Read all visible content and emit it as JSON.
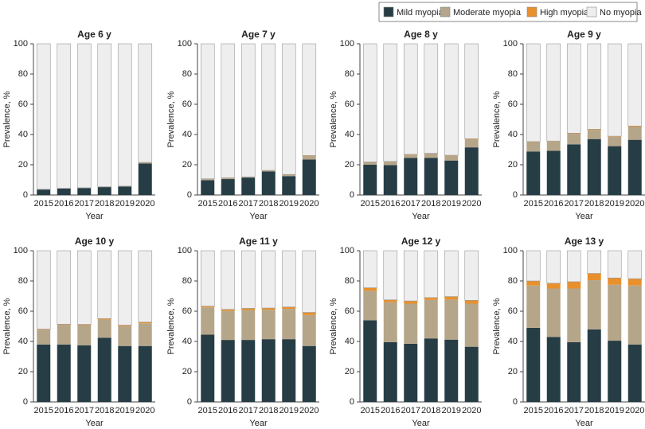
{
  "chart_data": [
    {
      "type": "bar",
      "stacked": true,
      "title": "Age 6 y",
      "x_label": "Year",
      "y_label": "Prevalence, %",
      "categories": [
        "2015",
        "2016",
        "2017",
        "2018",
        "2019",
        "2020"
      ],
      "ylim": [
        0,
        100
      ],
      "yticks": [
        0,
        20,
        40,
        60,
        80,
        100
      ],
      "series": [
        {
          "name": "Mild myopia",
          "color": "#263d45",
          "values": [
            3.6,
            4.2,
            4.6,
            5.2,
            5.6,
            20.8
          ]
        },
        {
          "name": "Moderate myopia",
          "color": "#b5a68a",
          "values": [
            0.2,
            0.2,
            0.2,
            0.3,
            0.3,
            0.7
          ]
        },
        {
          "name": "High myopia",
          "color": "#e8902c",
          "values": [
            0,
            0,
            0,
            0,
            0,
            0.1
          ]
        },
        {
          "name": "No myopia",
          "color": "#eeeeee",
          "values": [
            96.2,
            95.6,
            95.2,
            94.5,
            94.1,
            78.4
          ]
        }
      ]
    },
    {
      "type": "bar",
      "stacked": true,
      "title": "Age 7 y",
      "x_label": "Year",
      "y_label": "Prevalence, %",
      "categories": [
        "2015",
        "2016",
        "2017",
        "2018",
        "2019",
        "2020"
      ],
      "ylim": [
        0,
        100
      ],
      "yticks": [
        0,
        20,
        40,
        60,
        80,
        100
      ],
      "series": [
        {
          "name": "Mild myopia",
          "color": "#263d45",
          "values": [
            9.8,
            10.5,
            11.5,
            15.6,
            12.5,
            23.5
          ]
        },
        {
          "name": "Moderate myopia",
          "color": "#b5a68a",
          "values": [
            0.8,
            0.8,
            0.5,
            0.6,
            1,
            2.3
          ]
        },
        {
          "name": "High myopia",
          "color": "#e8902c",
          "values": [
            0.1,
            0.1,
            0,
            0.1,
            0.1,
            0.3
          ]
        },
        {
          "name": "No myopia",
          "color": "#eeeeee",
          "values": [
            89.3,
            88.6,
            88,
            83.7,
            86.4,
            73.9
          ]
        }
      ]
    },
    {
      "type": "bar",
      "stacked": true,
      "title": "Age 8 y",
      "x_label": "Year",
      "y_label": "Prevalence, %",
      "categories": [
        "2015",
        "2016",
        "2017",
        "2018",
        "2019",
        "2020"
      ],
      "ylim": [
        0,
        100
      ],
      "yticks": [
        0,
        20,
        40,
        60,
        80,
        100
      ],
      "series": [
        {
          "name": "Mild myopia",
          "color": "#263d45",
          "values": [
            20,
            19.8,
            24.5,
            24.6,
            22.8,
            31.5
          ]
        },
        {
          "name": "Moderate myopia",
          "color": "#b5a68a",
          "values": [
            1.8,
            2.3,
            2.2,
            2.8,
            3.2,
            5.3
          ]
        },
        {
          "name": "High myopia",
          "color": "#e8902c",
          "values": [
            0.1,
            0.1,
            0.2,
            0.2,
            0.3,
            0.4
          ]
        },
        {
          "name": "No myopia",
          "color": "#eeeeee",
          "values": [
            78.1,
            77.8,
            73.1,
            72.4,
            73.7,
            62.8
          ]
        }
      ]
    },
    {
      "type": "bar",
      "stacked": true,
      "title": "Age 9 y",
      "x_label": "Year",
      "y_label": "Prevalence, %",
      "categories": [
        "2015",
        "2016",
        "2017",
        "2018",
        "2019",
        "2020"
      ],
      "ylim": [
        0,
        100
      ],
      "yticks": [
        0,
        20,
        40,
        60,
        80,
        100
      ],
      "series": [
        {
          "name": "Mild myopia",
          "color": "#263d45",
          "values": [
            28.8,
            29.2,
            33.5,
            37,
            32.3,
            36.5
          ]
        },
        {
          "name": "Moderate myopia",
          "color": "#b5a68a",
          "values": [
            6.2,
            6.2,
            7,
            6,
            6.2,
            8.5
          ]
        },
        {
          "name": "High myopia",
          "color": "#e8902c",
          "values": [
            0.3,
            0.3,
            0.4,
            0.5,
            0.4,
            0.6
          ]
        },
        {
          "name": "No myopia",
          "color": "#eeeeee",
          "values": [
            64.7,
            64.3,
            59.1,
            56.5,
            61.1,
            54.4
          ]
        }
      ]
    },
    {
      "type": "bar",
      "stacked": true,
      "title": "Age 10 y",
      "x_label": "Year",
      "y_label": "Prevalence, %",
      "categories": [
        "2015",
        "2016",
        "2017",
        "2018",
        "2019",
        "2020"
      ],
      "ylim": [
        0,
        100
      ],
      "yticks": [
        0,
        20,
        40,
        60,
        80,
        100
      ],
      "series": [
        {
          "name": "Mild myopia",
          "color": "#263d45",
          "values": [
            38,
            38,
            37.5,
            42.5,
            37,
            37
          ]
        },
        {
          "name": "Moderate myopia",
          "color": "#b5a68a",
          "values": [
            9.8,
            13,
            13.3,
            12,
            13.2,
            15
          ]
        },
        {
          "name": "High myopia",
          "color": "#e8902c",
          "values": [
            0.4,
            0.4,
            0.5,
            0.6,
            0.6,
            0.8
          ]
        },
        {
          "name": "No myopia",
          "color": "#eeeeee",
          "values": [
            51.8,
            48.6,
            48.7,
            44.9,
            49.2,
            47.2
          ]
        }
      ]
    },
    {
      "type": "bar",
      "stacked": true,
      "title": "Age 11 y",
      "x_label": "Year",
      "y_label": "Prevalence, %",
      "categories": [
        "2015",
        "2016",
        "2017",
        "2018",
        "2019",
        "2020"
      ],
      "ylim": [
        0,
        100
      ],
      "yticks": [
        0,
        20,
        40,
        60,
        80,
        100
      ],
      "series": [
        {
          "name": "Mild myopia",
          "color": "#263d45",
          "values": [
            44.5,
            41,
            41,
            41.5,
            41.5,
            37
          ]
        },
        {
          "name": "Moderate myopia",
          "color": "#b5a68a",
          "values": [
            18,
            19.2,
            19.8,
            19.5,
            20,
            20.5
          ]
        },
        {
          "name": "High myopia",
          "color": "#e8902c",
          "values": [
            0.8,
            1,
            1.1,
            1.1,
            1.3,
            1.7
          ]
        },
        {
          "name": "No myopia",
          "color": "#eeeeee",
          "values": [
            36.7,
            38.8,
            38.1,
            37.9,
            37.2,
            40.8
          ]
        }
      ]
    },
    {
      "type": "bar",
      "stacked": true,
      "title": "Age 12 y",
      "x_label": "Year",
      "y_label": "Prevalence, %",
      "categories": [
        "2015",
        "2016",
        "2017",
        "2018",
        "2019",
        "2020"
      ],
      "ylim": [
        0,
        100
      ],
      "yticks": [
        0,
        20,
        40,
        60,
        80,
        100
      ],
      "series": [
        {
          "name": "Mild myopia",
          "color": "#263d45",
          "values": [
            54,
            39.5,
            38.5,
            42,
            41.2,
            36.5
          ]
        },
        {
          "name": "Moderate myopia",
          "color": "#b5a68a",
          "values": [
            19.5,
            26.5,
            26.5,
            25.5,
            26.5,
            28.5
          ]
        },
        {
          "name": "High myopia",
          "color": "#e8902c",
          "values": [
            2,
            1.5,
            1.8,
            1.5,
            2,
            2.2
          ]
        },
        {
          "name": "No myopia",
          "color": "#eeeeee",
          "values": [
            24.5,
            32.5,
            33.2,
            31,
            30.3,
            32.8
          ]
        }
      ]
    },
    {
      "type": "bar",
      "stacked": true,
      "title": "Age 13 y",
      "x_label": "Year",
      "y_label": "Prevalence, %",
      "categories": [
        "2015",
        "2016",
        "2017",
        "2018",
        "2019",
        "2020"
      ],
      "ylim": [
        0,
        100
      ],
      "yticks": [
        0,
        20,
        40,
        60,
        80,
        100
      ],
      "series": [
        {
          "name": "Mild myopia",
          "color": "#263d45",
          "values": [
            49,
            43,
            39.5,
            48,
            40.5,
            38
          ]
        },
        {
          "name": "Moderate myopia",
          "color": "#b5a68a",
          "values": [
            28,
            32,
            35.5,
            32.5,
            37,
            39
          ]
        },
        {
          "name": "High myopia",
          "color": "#e8902c",
          "values": [
            3,
            3.5,
            4.5,
            4.5,
            4.5,
            4.5
          ]
        },
        {
          "name": "No myopia",
          "color": "#eeeeee",
          "values": [
            20,
            21.5,
            20.5,
            15,
            18,
            18.5
          ]
        }
      ]
    }
  ]
}
